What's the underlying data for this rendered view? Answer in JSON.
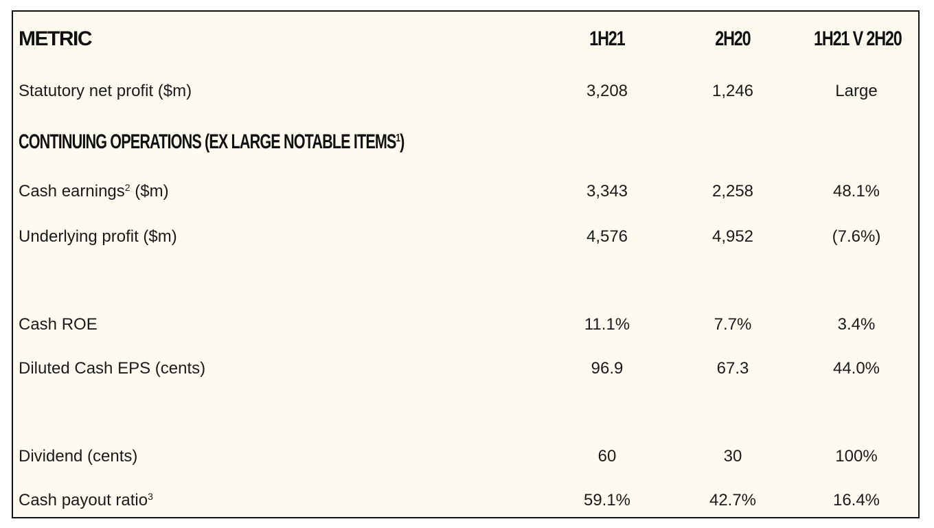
{
  "header": {
    "metric": "METRIC",
    "col1": "1H21",
    "col2": "2H20",
    "col3": "1H21 V 2H20"
  },
  "section": {
    "title": "CONTINUING OPERATIONS (EX LARGE NOTABLE ITEMS",
    "sup": "1",
    "close": ")"
  },
  "rows": [
    {
      "label": "Statutory net profit ($m)",
      "sup": "",
      "label_after": "",
      "v1": "3,208",
      "v2": "1,246",
      "v3": "Large"
    },
    {
      "label": "Cash earnings",
      "sup": "2",
      "label_after": " ($m)",
      "v1": "3,343",
      "v2": "2,258",
      "v3": "48.1%"
    },
    {
      "label": "Underlying profit ($m)",
      "sup": "",
      "label_after": "",
      "v1": "4,576",
      "v2": "4,952",
      "v3": "(7.6%)"
    },
    {
      "label": "Cash ROE",
      "sup": "",
      "label_after": "",
      "v1": "11.1%",
      "v2": "7.7%",
      "v3": "3.4%"
    },
    {
      "label": "Diluted Cash EPS (cents)",
      "sup": "",
      "label_after": "",
      "v1": "96.9",
      "v2": "67.3",
      "v3": "44.0%"
    },
    {
      "label": "Dividend (cents)",
      "sup": "",
      "label_after": "",
      "v1": "60",
      "v2": "30",
      "v3": "100%"
    },
    {
      "label": "Cash payout ratio",
      "sup": "3",
      "label_after": "",
      "v1": "59.1%",
      "v2": "42.7%",
      "v3": "16.4%"
    }
  ]
}
